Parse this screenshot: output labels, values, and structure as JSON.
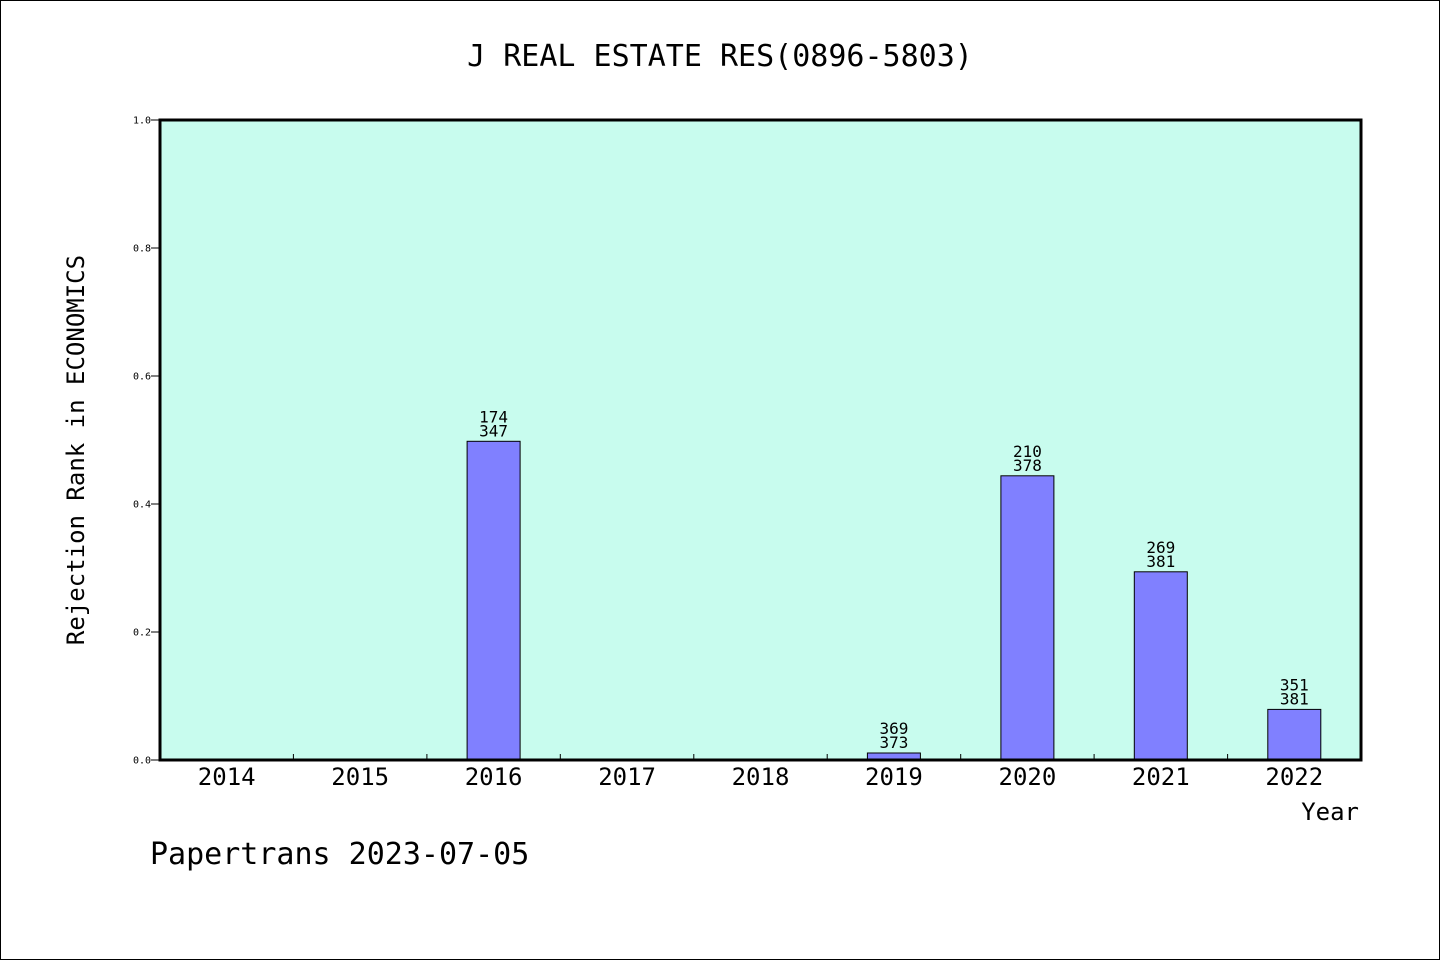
{
  "colors": {
    "plot_background": "#c8fcee",
    "bar_fill": "#8080ff",
    "bar_stroke": "#000000",
    "axis": "#000000"
  },
  "chart_data": {
    "type": "bar",
    "title": "J REAL ESTATE RES(0896-5803)",
    "xlabel": "Year",
    "ylabel": "Rejection Rank in ECONOMICS",
    "ylim": [
      0,
      1.0
    ],
    "yticks": [
      "0.0",
      "0.2",
      "0.4",
      "0.6",
      "0.8",
      "1.0"
    ],
    "grid": false,
    "legend": "none",
    "categories": [
      "2014",
      "2015",
      "2016",
      "2017",
      "2018",
      "2019",
      "2020",
      "2021",
      "2022"
    ],
    "values": [
      0,
      0,
      0.498,
      0,
      0,
      0.011,
      0.444,
      0.294,
      0.079
    ],
    "bar_labels": [
      null,
      null,
      {
        "rank": "174",
        "total": "347"
      },
      null,
      null,
      {
        "rank": "369",
        "total": "373"
      },
      {
        "rank": "210",
        "total": "378"
      },
      {
        "rank": "269",
        "total": "381"
      },
      {
        "rank": "351",
        "total": "381"
      }
    ]
  },
  "footer": "Papertrans 2023-07-05"
}
